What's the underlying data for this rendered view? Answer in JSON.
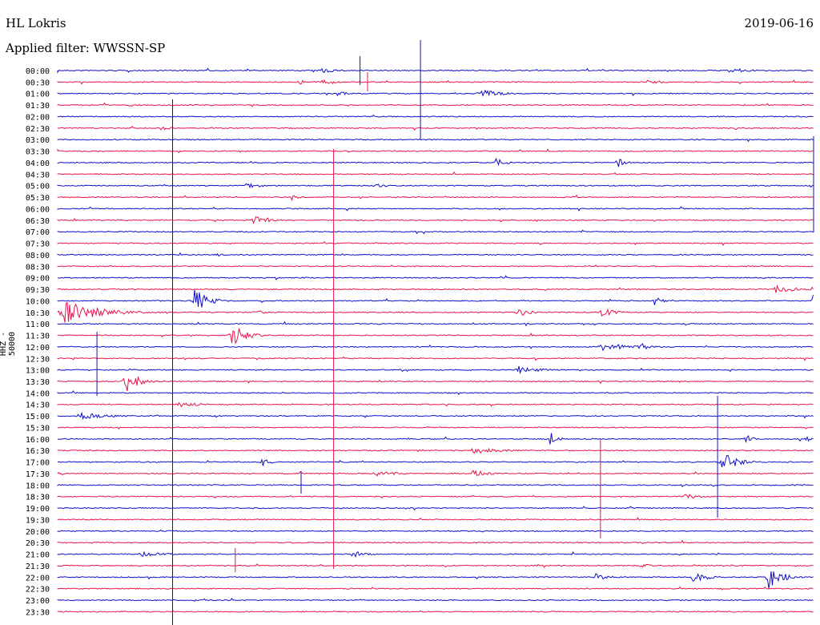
{
  "header": {
    "station": "HL Lokris",
    "date": "2019-06-16",
    "filter": "Applied filter: WWSSN-SP"
  },
  "chart_data": {
    "type": "line",
    "title": "HL Lokris",
    "ylabel": "HHZ - 50000",
    "row_labels": [
      "00:00",
      "00:30",
      "01:00",
      "01:30",
      "02:00",
      "02:30",
      "03:00",
      "03:30",
      "04:00",
      "04:30",
      "05:00",
      "05:30",
      "06:00",
      "06:30",
      "07:00",
      "07:30",
      "08:00",
      "08:30",
      "09:00",
      "09:30",
      "10:00",
      "10:30",
      "11:00",
      "11:30",
      "12:00",
      "12:30",
      "13:00",
      "13:30",
      "14:00",
      "14:30",
      "15:00",
      "15:30",
      "16:00",
      "16:30",
      "17:00",
      "17:30",
      "18:00",
      "18:30",
      "19:00",
      "19:30",
      "20:00",
      "20:30",
      "21:00",
      "21:30",
      "22:00",
      "22:30",
      "23:00",
      "23:30"
    ],
    "colors": [
      "#1010c8",
      "#e8144a"
    ],
    "events": [
      {
        "row": 0,
        "x": 0.35,
        "amp": 4,
        "w": 0.02
      },
      {
        "row": 0,
        "x": 0.89,
        "amp": 6,
        "w": 0.02
      },
      {
        "row": 1,
        "x": 0.32,
        "amp": 3,
        "w": 0.02
      },
      {
        "row": 1,
        "x": 0.35,
        "amp": 4,
        "w": 0.02
      },
      {
        "row": 1,
        "x": 0.78,
        "amp": 3,
        "w": 0.03
      },
      {
        "row": 2,
        "x": 0.37,
        "amp": 3,
        "w": 0.02
      },
      {
        "row": 2,
        "x": 0.56,
        "amp": 5,
        "w": 0.03
      },
      {
        "row": 5,
        "x": 0.14,
        "amp": 4,
        "w": 0.01
      },
      {
        "row": 8,
        "x": 0.58,
        "amp": 10,
        "w": 0.01
      },
      {
        "row": 8,
        "x": 0.74,
        "amp": 7,
        "w": 0.01
      },
      {
        "row": 10,
        "x": 0.25,
        "amp": 3,
        "w": 0.03
      },
      {
        "row": 10,
        "x": 0.42,
        "amp": 3,
        "w": 0.02
      },
      {
        "row": 11,
        "x": 0.31,
        "amp": 4,
        "w": 0.01
      },
      {
        "row": 13,
        "x": 0.26,
        "amp": 8,
        "w": 0.02
      },
      {
        "row": 16,
        "x": 0.21,
        "amp": 4,
        "w": 0.01
      },
      {
        "row": 19,
        "x": 0.95,
        "amp": 5,
        "w": 0.03
      },
      {
        "row": 20,
        "x": 0.18,
        "amp": 16,
        "w": 0.02
      },
      {
        "row": 20,
        "x": 0.79,
        "amp": 7,
        "w": 0.01
      },
      {
        "row": 20,
        "x": 1.0,
        "amp": 15,
        "w": 0.01
      },
      {
        "row": 21,
        "x": 0.01,
        "amp": 14,
        "w": 0.05
      },
      {
        "row": 21,
        "x": 0.26,
        "amp": 3,
        "w": 0.02
      },
      {
        "row": 21,
        "x": 0.61,
        "amp": 5,
        "w": 0.02
      },
      {
        "row": 21,
        "x": 0.72,
        "amp": 6,
        "w": 0.02
      },
      {
        "row": 23,
        "x": 0.23,
        "amp": 16,
        "w": 0.02
      },
      {
        "row": 24,
        "x": 0.72,
        "amp": 7,
        "w": 0.03
      },
      {
        "row": 24,
        "x": 0.77,
        "amp": 5,
        "w": 0.02
      },
      {
        "row": 26,
        "x": 0.61,
        "amp": 5,
        "w": 0.03
      },
      {
        "row": 27,
        "x": 0.09,
        "amp": 14,
        "w": 0.02
      },
      {
        "row": 29,
        "x": 0.16,
        "amp": 4,
        "w": 0.03
      },
      {
        "row": 30,
        "x": 0.03,
        "amp": 5,
        "w": 0.04
      },
      {
        "row": 32,
        "x": 0.65,
        "amp": 12,
        "w": 0.01
      },
      {
        "row": 32,
        "x": 0.91,
        "amp": 6,
        "w": 0.01
      },
      {
        "row": 32,
        "x": 0.99,
        "amp": 3,
        "w": 0.02
      },
      {
        "row": 33,
        "x": 0.55,
        "amp": 4,
        "w": 0.05
      },
      {
        "row": 34,
        "x": 0.27,
        "amp": 7,
        "w": 0.01
      },
      {
        "row": 34,
        "x": 0.88,
        "amp": 15,
        "w": 0.02
      },
      {
        "row": 35,
        "x": 0.42,
        "amp": 4,
        "w": 0.03
      },
      {
        "row": 35,
        "x": 0.55,
        "amp": 4,
        "w": 0.03
      },
      {
        "row": 37,
        "x": 0.83,
        "amp": 3,
        "w": 0.03
      },
      {
        "row": 42,
        "x": 0.11,
        "amp": 3,
        "w": 0.04
      },
      {
        "row": 42,
        "x": 0.39,
        "amp": 5,
        "w": 0.02
      },
      {
        "row": 43,
        "x": 0.77,
        "amp": 3,
        "w": 0.02
      },
      {
        "row": 44,
        "x": 0.71,
        "amp": 5,
        "w": 0.02
      },
      {
        "row": 44,
        "x": 0.84,
        "amp": 8,
        "w": 0.02
      },
      {
        "row": 44,
        "x": 0.94,
        "amp": 16,
        "w": 0.02
      }
    ],
    "spikes": [
      {
        "x": 0.4,
        "y0": 70,
        "y1": 106,
        "color": "#1010c8"
      },
      {
        "x": 0.41,
        "y0": 90,
        "y1": 114,
        "color": "#e8144a"
      },
      {
        "x": 0.48,
        "y0": 50,
        "y1": 174,
        "color": "#1010c8"
      },
      {
        "x": 0.152,
        "y0": 124,
        "y1": 780,
        "color": "#1010c8"
      },
      {
        "x": 0.365,
        "y0": 186,
        "y1": 710,
        "color": "#e8144a"
      },
      {
        "x": 0.052,
        "y0": 414,
        "y1": 494,
        "color": "#1010c8"
      },
      {
        "x": 0.322,
        "y0": 588,
        "y1": 616,
        "color": "#1010c8"
      },
      {
        "x": 0.718,
        "y0": 548,
        "y1": 672,
        "color": "#e8144a"
      },
      {
        "x": 0.873,
        "y0": 494,
        "y1": 646,
        "color": "#1010c8"
      },
      {
        "x": 1.0,
        "y0": 170,
        "y1": 290,
        "color": "#1010c8"
      },
      {
        "x": 0.235,
        "y0": 684,
        "y1": 714,
        "color": "#e8144a"
      }
    ]
  }
}
